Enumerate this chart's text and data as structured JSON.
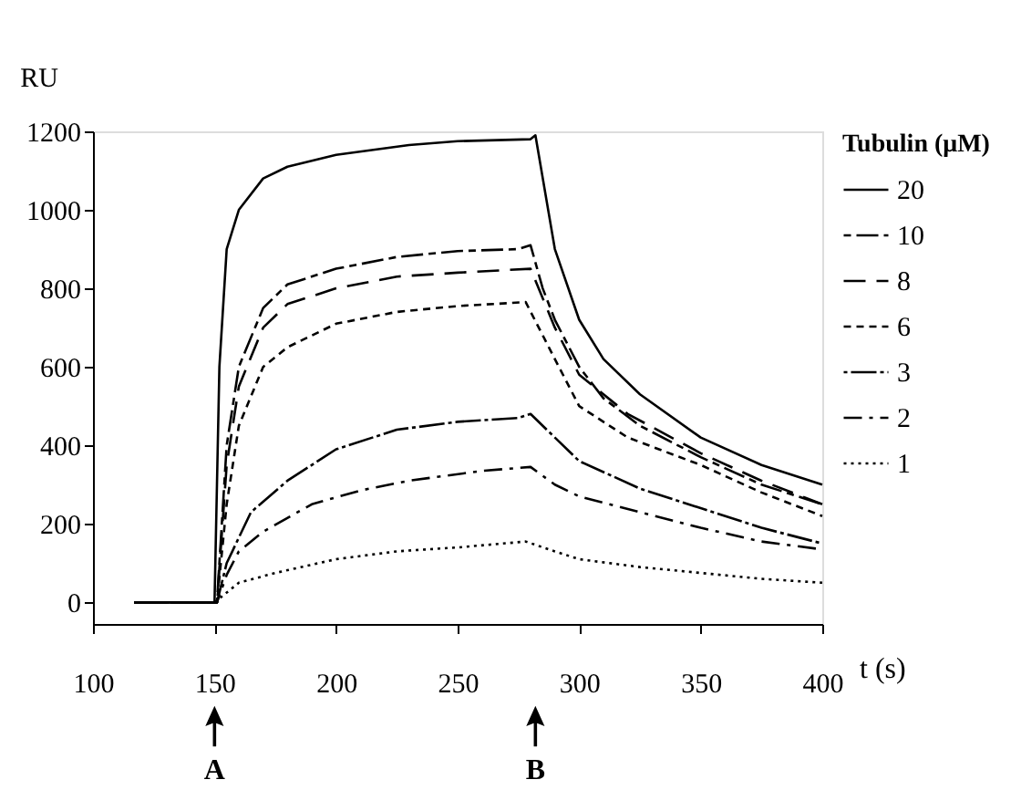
{
  "chart_data": {
    "type": "line",
    "xlabel": "t (s)",
    "ylabel": "RU",
    "legend_title": "Tubulin (μM)",
    "xlim": [
      100,
      400
    ],
    "xticks": [
      100,
      150,
      200,
      250,
      300,
      350,
      400
    ],
    "ylim": [
      -55,
      1200
    ],
    "yticks": [
      0,
      200,
      400,
      600,
      800,
      1000,
      1200
    ],
    "grid": false,
    "legend": "right",
    "marker": "none",
    "annotations": [
      "A",
      "B"
    ],
    "series": [
      {
        "name": "20",
        "color": "#000000",
        "line_style": "solid",
        "x": [
          117,
          150,
          151,
          152,
          155,
          160,
          170,
          180,
          200,
          230,
          250,
          280,
          282,
          290,
          300,
          310,
          325,
          350,
          375,
          400
        ],
        "values": [
          0,
          0,
          300,
          600,
          900,
          1000,
          1080,
          1110,
          1140,
          1165,
          1175,
          1180,
          1190,
          900,
          720,
          620,
          530,
          420,
          350,
          300
        ]
      },
      {
        "name": "10",
        "color": "#000000",
        "line_style": "dashed",
        "x": [
          117,
          150,
          151,
          155,
          160,
          170,
          180,
          200,
          225,
          250,
          275,
          280,
          285,
          290,
          300,
          310,
          325,
          350,
          375,
          400
        ],
        "values": [
          0,
          0,
          0,
          400,
          600,
          750,
          810,
          850,
          880,
          895,
          900,
          910,
          800,
          720,
          600,
          520,
          450,
          370,
          300,
          250
        ]
      },
      {
        "name": "8",
        "color": "#000000",
        "line_style": "dashed",
        "x": [
          117,
          150,
          151,
          155,
          160,
          170,
          180,
          200,
          225,
          250,
          280,
          290,
          300,
          320,
          350,
          375,
          400
        ],
        "values": [
          0,
          0,
          0,
          350,
          550,
          700,
          760,
          800,
          830,
          840,
          850,
          700,
          580,
          480,
          380,
          310,
          250
        ]
      },
      {
        "name": "6",
        "color": "#000000",
        "line_style": "dashed",
        "x": [
          117,
          150,
          151,
          155,
          160,
          170,
          180,
          200,
          225,
          250,
          278,
          290,
          300,
          320,
          350,
          375,
          400
        ],
        "values": [
          0,
          0,
          0,
          250,
          450,
          600,
          650,
          710,
          740,
          755,
          765,
          620,
          500,
          420,
          350,
          280,
          220
        ]
      },
      {
        "name": "3",
        "color": "#000000",
        "line_style": "dashed",
        "x": [
          117,
          150,
          151,
          155,
          165,
          180,
          200,
          225,
          250,
          275,
          280,
          290,
          300,
          325,
          350,
          375,
          400
        ],
        "values": [
          0,
          0,
          0,
          100,
          230,
          310,
          390,
          440,
          460,
          470,
          480,
          420,
          360,
          290,
          240,
          190,
          150
        ]
      },
      {
        "name": "2",
        "color": "#000000",
        "line_style": "dashed",
        "x": [
          117,
          150,
          151,
          155,
          160,
          170,
          190,
          210,
          230,
          260,
          280,
          290,
          300,
          325,
          350,
          375,
          400
        ],
        "values": [
          0,
          0,
          0,
          70,
          130,
          180,
          250,
          285,
          310,
          335,
          345,
          300,
          270,
          230,
          190,
          155,
          135
        ]
      },
      {
        "name": "1",
        "color": "#000000",
        "line_style": "dotted",
        "x": [
          117,
          150,
          152,
          160,
          175,
          200,
          225,
          250,
          278,
          290,
          300,
          325,
          350,
          375,
          400
        ],
        "values": [
          0,
          0,
          10,
          50,
          75,
          110,
          130,
          140,
          155,
          130,
          110,
          90,
          75,
          60,
          50
        ]
      }
    ]
  }
}
